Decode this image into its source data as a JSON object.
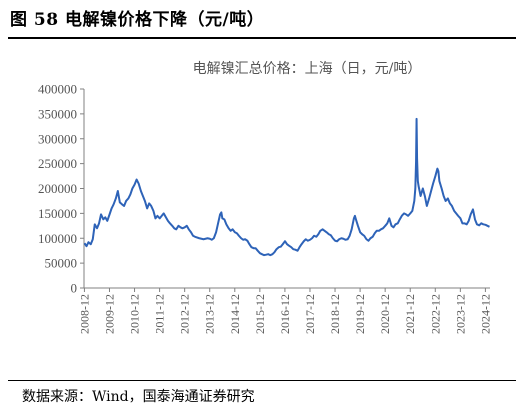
{
  "figure": {
    "title": "图 58  电解镍价格下降（元/吨）",
    "source": "数据来源：Wind，国泰海通证券研究"
  },
  "chart_data": {
    "type": "line",
    "series_label": "电解镍汇总价格：上海（日，元/吨）",
    "color": "#2E63B8",
    "ylim": [
      0,
      400000
    ],
    "yticks": [
      "400000",
      "350000",
      "300000",
      "250000",
      "200000",
      "150000",
      "100000",
      "50000",
      "0"
    ],
    "xlim": [
      2008.9,
      2025.1
    ],
    "xticks": [
      "2008-12",
      "2009-12",
      "2010-12",
      "2011-12",
      "2012-12",
      "2013-12",
      "2014-12",
      "2015-12",
      "2016-12",
      "2017-12",
      "2018-12",
      "2019-12",
      "2020-12",
      "2021-12",
      "2022-12",
      "2023-12",
      "2024-12"
    ],
    "grid": false,
    "series": [
      {
        "values": [
          [
            2008.92,
            90000
          ],
          [
            2009.0,
            84000
          ],
          [
            2009.08,
            92000
          ],
          [
            2009.17,
            88000
          ],
          [
            2009.25,
            98000
          ],
          [
            2009.33,
            128000
          ],
          [
            2009.42,
            120000
          ],
          [
            2009.5,
            130000
          ],
          [
            2009.58,
            148000
          ],
          [
            2009.67,
            138000
          ],
          [
            2009.75,
            142000
          ],
          [
            2009.83,
            135000
          ],
          [
            2009.92,
            148000
          ],
          [
            2010.0,
            160000
          ],
          [
            2010.08,
            168000
          ],
          [
            2010.17,
            180000
          ],
          [
            2010.25,
            195000
          ],
          [
            2010.33,
            172000
          ],
          [
            2010.42,
            168000
          ],
          [
            2010.5,
            165000
          ],
          [
            2010.58,
            175000
          ],
          [
            2010.67,
            180000
          ],
          [
            2010.75,
            188000
          ],
          [
            2010.83,
            200000
          ],
          [
            2010.92,
            208000
          ],
          [
            2011.0,
            218000
          ],
          [
            2011.08,
            210000
          ],
          [
            2011.17,
            195000
          ],
          [
            2011.25,
            185000
          ],
          [
            2011.33,
            175000
          ],
          [
            2011.42,
            160000
          ],
          [
            2011.5,
            170000
          ],
          [
            2011.58,
            165000
          ],
          [
            2011.67,
            155000
          ],
          [
            2011.75,
            140000
          ],
          [
            2011.83,
            145000
          ],
          [
            2011.92,
            140000
          ],
          [
            2012.0,
            145000
          ],
          [
            2012.08,
            150000
          ],
          [
            2012.17,
            142000
          ],
          [
            2012.25,
            135000
          ],
          [
            2012.33,
            130000
          ],
          [
            2012.42,
            125000
          ],
          [
            2012.5,
            120000
          ],
          [
            2012.58,
            118000
          ],
          [
            2012.67,
            125000
          ],
          [
            2012.75,
            122000
          ],
          [
            2012.83,
            120000
          ],
          [
            2012.92,
            122000
          ],
          [
            2013.0,
            125000
          ],
          [
            2013.08,
            118000
          ],
          [
            2013.17,
            112000
          ],
          [
            2013.25,
            105000
          ],
          [
            2013.33,
            103000
          ],
          [
            2013.5,
            100000
          ],
          [
            2013.67,
            98000
          ],
          [
            2013.83,
            100000
          ],
          [
            2013.92,
            99000
          ],
          [
            2014.0,
            97000
          ],
          [
            2014.08,
            100000
          ],
          [
            2014.17,
            112000
          ],
          [
            2014.25,
            130000
          ],
          [
            2014.33,
            148000
          ],
          [
            2014.38,
            152000
          ],
          [
            2014.42,
            140000
          ],
          [
            2014.5,
            138000
          ],
          [
            2014.58,
            128000
          ],
          [
            2014.67,
            120000
          ],
          [
            2014.75,
            115000
          ],
          [
            2014.83,
            118000
          ],
          [
            2014.92,
            112000
          ],
          [
            2015.0,
            110000
          ],
          [
            2015.08,
            105000
          ],
          [
            2015.17,
            100000
          ],
          [
            2015.25,
            97000
          ],
          [
            2015.33,
            98000
          ],
          [
            2015.42,
            95000
          ],
          [
            2015.5,
            88000
          ],
          [
            2015.58,
            82000
          ],
          [
            2015.67,
            80000
          ],
          [
            2015.75,
            80000
          ],
          [
            2015.83,
            75000
          ],
          [
            2015.92,
            70000
          ],
          [
            2016.0,
            68000
          ],
          [
            2016.08,
            66000
          ],
          [
            2016.17,
            67000
          ],
          [
            2016.25,
            68000
          ],
          [
            2016.33,
            66000
          ],
          [
            2016.42,
            68000
          ],
          [
            2016.5,
            72000
          ],
          [
            2016.58,
            78000
          ],
          [
            2016.67,
            82000
          ],
          [
            2016.75,
            83000
          ],
          [
            2016.83,
            88000
          ],
          [
            2016.92,
            94000
          ],
          [
            2017.0,
            88000
          ],
          [
            2017.08,
            85000
          ],
          [
            2017.17,
            82000
          ],
          [
            2017.25,
            78000
          ],
          [
            2017.33,
            77000
          ],
          [
            2017.42,
            75000
          ],
          [
            2017.5,
            82000
          ],
          [
            2017.58,
            88000
          ],
          [
            2017.67,
            94000
          ],
          [
            2017.75,
            98000
          ],
          [
            2017.83,
            95000
          ],
          [
            2017.92,
            97000
          ],
          [
            2018.0,
            100000
          ],
          [
            2018.08,
            105000
          ],
          [
            2018.17,
            103000
          ],
          [
            2018.25,
            108000
          ],
          [
            2018.33,
            115000
          ],
          [
            2018.42,
            118000
          ],
          [
            2018.5,
            115000
          ],
          [
            2018.58,
            112000
          ],
          [
            2018.67,
            108000
          ],
          [
            2018.75,
            106000
          ],
          [
            2018.83,
            100000
          ],
          [
            2018.92,
            95000
          ],
          [
            2019.0,
            94000
          ],
          [
            2019.08,
            98000
          ],
          [
            2019.17,
            100000
          ],
          [
            2019.25,
            99000
          ],
          [
            2019.33,
            97000
          ],
          [
            2019.42,
            98000
          ],
          [
            2019.5,
            105000
          ],
          [
            2019.58,
            118000
          ],
          [
            2019.67,
            140000
          ],
          [
            2019.71,
            145000
          ],
          [
            2019.75,
            138000
          ],
          [
            2019.83,
            125000
          ],
          [
            2019.92,
            112000
          ],
          [
            2020.0,
            108000
          ],
          [
            2020.08,
            105000
          ],
          [
            2020.17,
            98000
          ],
          [
            2020.25,
            95000
          ],
          [
            2020.33,
            100000
          ],
          [
            2020.42,
            103000
          ],
          [
            2020.5,
            110000
          ],
          [
            2020.58,
            115000
          ],
          [
            2020.67,
            115000
          ],
          [
            2020.75,
            118000
          ],
          [
            2020.83,
            120000
          ],
          [
            2020.92,
            125000
          ],
          [
            2021.0,
            130000
          ],
          [
            2021.08,
            140000
          ],
          [
            2021.17,
            125000
          ],
          [
            2021.25,
            122000
          ],
          [
            2021.33,
            128000
          ],
          [
            2021.42,
            130000
          ],
          [
            2021.5,
            138000
          ],
          [
            2021.58,
            145000
          ],
          [
            2021.67,
            150000
          ],
          [
            2021.75,
            148000
          ],
          [
            2021.83,
            145000
          ],
          [
            2021.92,
            150000
          ],
          [
            2022.0,
            155000
          ],
          [
            2022.08,
            175000
          ],
          [
            2022.12,
            200000
          ],
          [
            2022.15,
            255000
          ],
          [
            2022.17,
            340000
          ],
          [
            2022.19,
            260000
          ],
          [
            2022.22,
            215000
          ],
          [
            2022.25,
            205000
          ],
          [
            2022.33,
            185000
          ],
          [
            2022.42,
            200000
          ],
          [
            2022.5,
            185000
          ],
          [
            2022.58,
            165000
          ],
          [
            2022.67,
            180000
          ],
          [
            2022.75,
            195000
          ],
          [
            2022.83,
            210000
          ],
          [
            2022.92,
            225000
          ],
          [
            2023.0,
            240000
          ],
          [
            2023.04,
            235000
          ],
          [
            2023.08,
            215000
          ],
          [
            2023.17,
            200000
          ],
          [
            2023.25,
            185000
          ],
          [
            2023.33,
            175000
          ],
          [
            2023.42,
            180000
          ],
          [
            2023.5,
            170000
          ],
          [
            2023.58,
            165000
          ],
          [
            2023.67,
            155000
          ],
          [
            2023.75,
            150000
          ],
          [
            2023.83,
            145000
          ],
          [
            2023.92,
            140000
          ],
          [
            2024.0,
            130000
          ],
          [
            2024.08,
            130000
          ],
          [
            2024.17,
            128000
          ],
          [
            2024.25,
            135000
          ],
          [
            2024.33,
            148000
          ],
          [
            2024.42,
            158000
          ],
          [
            2024.5,
            138000
          ],
          [
            2024.58,
            128000
          ],
          [
            2024.67,
            126000
          ],
          [
            2024.75,
            130000
          ],
          [
            2024.83,
            128000
          ],
          [
            2024.92,
            127000
          ],
          [
            2025.0,
            125000
          ],
          [
            2025.08,
            123000
          ]
        ]
      }
    ]
  }
}
